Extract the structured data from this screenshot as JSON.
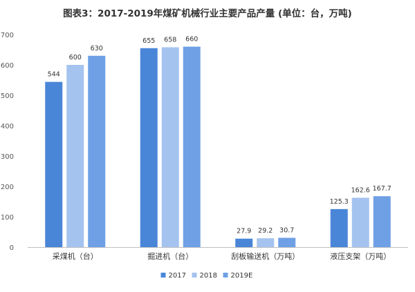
{
  "title": "图表3：2017-2019年煤矿机械行业主要产品产量 (单位：台，万吨)",
  "chart_data": {
    "type": "bar",
    "title": "图表3：2017-2019年煤矿机械行业主要产品产量 (单位：台，万吨)",
    "categories": [
      "采煤机（台）",
      "掘进机（台）",
      "刮板输送机（万吨）",
      "液压支架（万吨）"
    ],
    "series": [
      {
        "name": "2017",
        "values": [
          544,
          655,
          27.9,
          125.3
        ],
        "labels": [
          "544",
          "655",
          "27.9",
          "125.3"
        ],
        "color": "#4a86d8"
      },
      {
        "name": "2018",
        "values": [
          600,
          658,
          29.2,
          162.6
        ],
        "labels": [
          "600",
          "658",
          "29.2",
          "162.6"
        ],
        "color": "#a5c3ef"
      },
      {
        "name": "2019E",
        "values": [
          630,
          660,
          30.7,
          167.7
        ],
        "labels": [
          "630",
          "660",
          "30.7",
          "167.7"
        ],
        "color": "#6fa0e6"
      }
    ],
    "y_ticks": [
      "0",
      "100",
      "200",
      "300",
      "400",
      "500",
      "600",
      "700"
    ],
    "ylim": [
      0,
      700
    ],
    "grid": false,
    "legend": "bottom-center"
  }
}
